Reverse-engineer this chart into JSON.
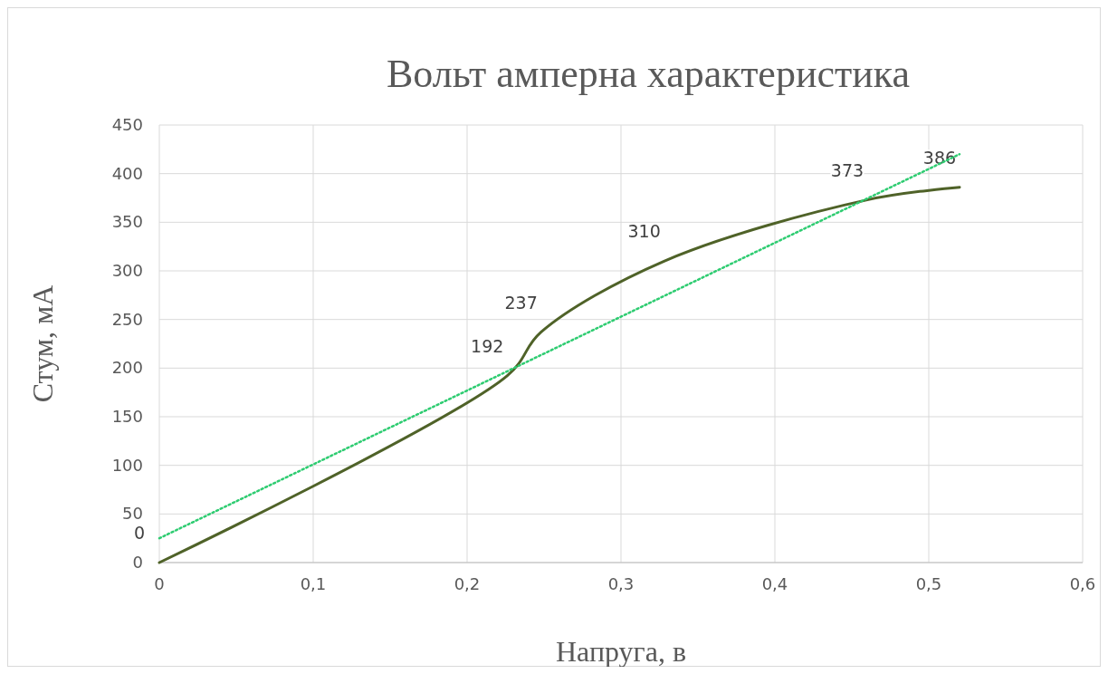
{
  "chart_data": {
    "type": "line",
    "title": "Вольт амперна характеристика",
    "xlabel": "Напруга, в",
    "ylabel": "Стум, мА",
    "x": [
      0,
      0.226,
      0.248,
      0.328,
      0.46,
      0.52
    ],
    "series": [
      {
        "color": "#4f6228",
        "values": [
          0,
          192,
          237,
          310,
          373,
          386
        ],
        "value_labels": [
          "0",
          "192",
          "237",
          "310",
          "373",
          "386"
        ],
        "line_style": "solid"
      },
      {
        "type": "line",
        "color": "#2ecc71",
        "x": [
          0,
          0.52
        ],
        "values": [
          25,
          420
        ],
        "line_style": "dotted"
      }
    ],
    "xlim": [
      0,
      0.6
    ],
    "xticks": [
      {
        "value": 0,
        "label": "0"
      },
      {
        "value": 0.1,
        "label": "0,1"
      },
      {
        "value": 0.2,
        "label": "0,2"
      },
      {
        "value": 0.3,
        "label": "0,3"
      },
      {
        "value": 0.4,
        "label": "0,4"
      },
      {
        "value": 0.5,
        "label": "0,5"
      },
      {
        "value": 0.6,
        "label": "0,6"
      }
    ],
    "ylim": [
      0,
      450
    ],
    "yticks": [
      0,
      50,
      100,
      150,
      200,
      250,
      300,
      350,
      400,
      450
    ],
    "grid": true,
    "marker": "none"
  }
}
